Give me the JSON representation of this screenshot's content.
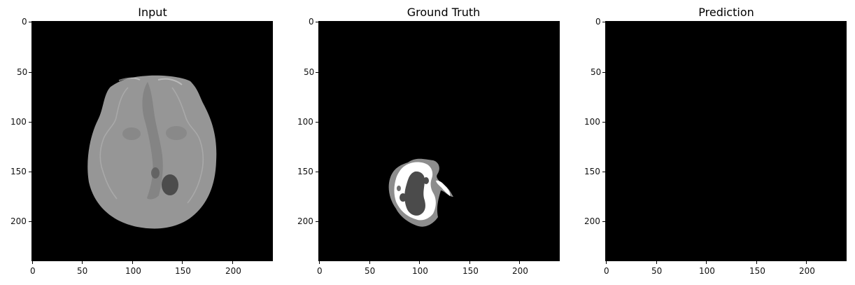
{
  "panels": [
    {
      "title": "Input",
      "x_ticks": [
        "0",
        "50",
        "100",
        "150",
        "200"
      ],
      "y_ticks": [
        "0",
        "50",
        "100",
        "150",
        "200"
      ]
    },
    {
      "title": "Ground Truth",
      "x_ticks": [
        "0",
        "50",
        "100",
        "150",
        "200"
      ],
      "y_ticks": [
        "0",
        "50",
        "100",
        "150",
        "200"
      ]
    },
    {
      "title": "Prediction",
      "x_ticks": [
        "0",
        "50",
        "100",
        "150",
        "200"
      ],
      "y_ticks": [
        "0",
        "50",
        "100",
        "150",
        "200"
      ]
    }
  ],
  "colors": {
    "background": "#000000",
    "brain_gray": "#9a9a9a",
    "brain_dark": "#4a4a4a",
    "gt_white": "#ffffff",
    "gt_light": "#8d8d8d",
    "gt_dark": "#4d4d4d"
  }
}
